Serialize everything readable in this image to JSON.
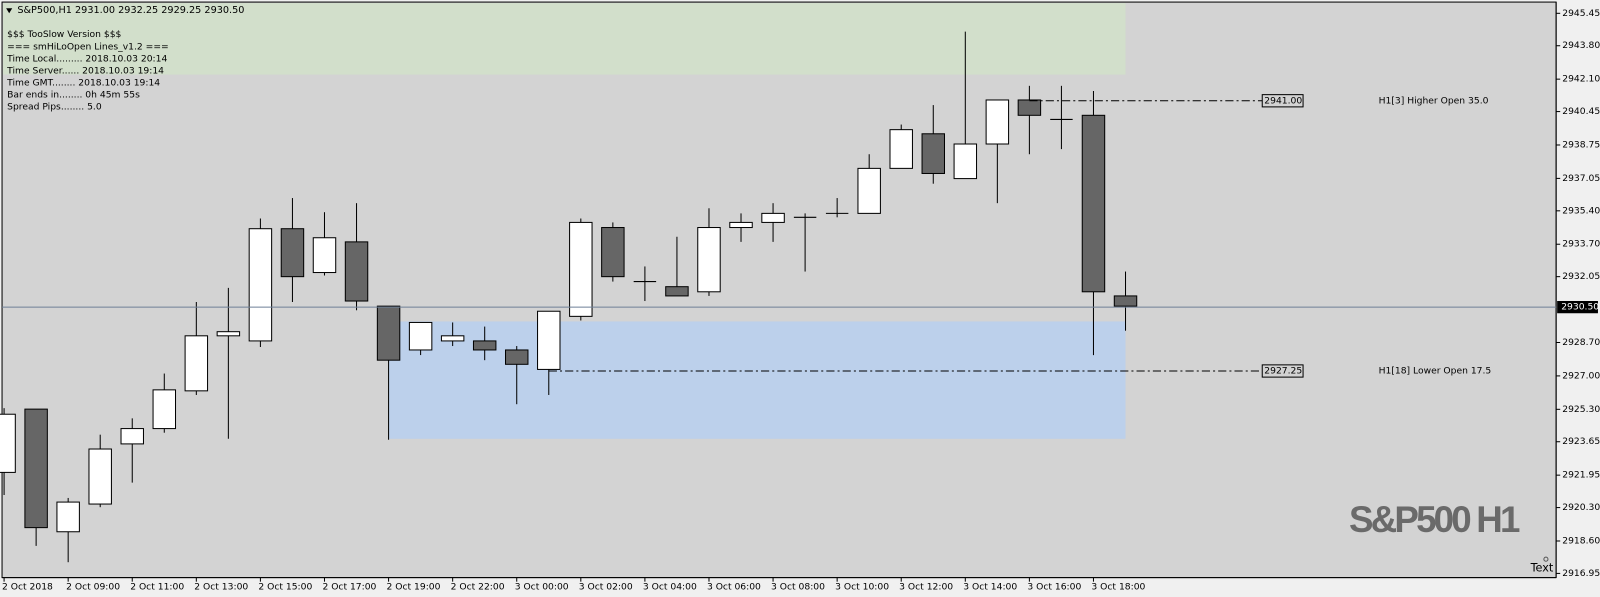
{
  "chart_data": {
    "type": "candlestick",
    "header": "S&P500,H1  2931.00 2932.25 2929.25 2930.50",
    "info_lines": [
      "$$$ TooSlow Version $$$",
      "=== smHiLoOpen Lines_v1.2 ===",
      "Time Local......... 2018.10.03 20:14",
      "Time Server...... 2018.10.03 19:14",
      "Time GMT........ 2018.10.03 19:14",
      "Bar ends in........ 0h 45m 55s",
      "Spread Pips........ 5.0"
    ],
    "watermark": "S&P500 H1",
    "text_object": "Text",
    "categories": [
      "2 Oct 2018",
      null,
      "2 Oct 09:00",
      null,
      "2 Oct 11:00",
      null,
      "2 Oct 13:00",
      null,
      "2 Oct 15:00",
      null,
      "2 Oct 17:00",
      null,
      "2 Oct 19:00",
      null,
      "2 Oct 22:00",
      null,
      "3 Oct 00:00",
      null,
      "3 Oct 02:00",
      null,
      "3 Oct 04:00",
      null,
      "3 Oct 06:00",
      null,
      "3 Oct 08:00",
      null,
      "3 Oct 10:00",
      null,
      "3 Oct 12:00",
      null,
      "3 Oct 14:00",
      null,
      "3 Oct 16:00",
      null,
      "3 Oct 18:00",
      null
    ],
    "open": [
      2922.09,
      2925.31,
      2919.07,
      2920.48,
      2923.54,
      2924.32,
      2926.24,
      2929.04,
      2928.78,
      2934.49,
      2932.26,
      2933.82,
      2930.55,
      2928.32,
      2928.78,
      2928.78,
      2928.32,
      2927.33,
      2930.03,
      2934.55,
      2931.8,
      2931.54,
      2931.28,
      2934.55,
      2934.81,
      2935.07,
      2935.27,
      2935.27,
      2937.56,
      2939.32,
      2937.04,
      2938.8,
      2941.04,
      2940.05,
      2940.26,
      2931.07
    ],
    "high": [
      2925.36,
      2925.31,
      2920.79,
      2924.01,
      2924.84,
      2927.12,
      2930.76,
      2931.48,
      2935.01,
      2936.05,
      2935.33,
      2935.79,
      2930.55,
      2929.72,
      2929.72,
      2929.51,
      2928.52,
      2930.29,
      2935.01,
      2934.81,
      2932.57,
      2934.08,
      2935.53,
      2935.27,
      2935.79,
      2935.27,
      2936.05,
      2938.28,
      2939.79,
      2940.78,
      2944.52,
      2941.04,
      2941.76,
      2941.76,
      2941.5,
      2932.31
    ],
    "low": [
      2920.94,
      2918.35,
      2917.52,
      2920.32,
      2921.57,
      2924.11,
      2926.03,
      2923.8,
      2928.47,
      2930.76,
      2932.11,
      2930.34,
      2923.75,
      2928.06,
      2928.52,
      2927.8,
      2925.56,
      2926.03,
      2929.82,
      2931.8,
      2930.81,
      2931.07,
      2931.07,
      2933.82,
      2933.82,
      2932.31,
      2935.07,
      2935.27,
      2937.56,
      2936.78,
      2937.04,
      2935.79,
      2938.28,
      2938.54,
      2928.06,
      2929.3
    ],
    "close": [
      2925.05,
      2919.28,
      2920.58,
      2923.28,
      2924.32,
      2926.29,
      2929.04,
      2929.25,
      2934.49,
      2932.05,
      2934.03,
      2930.81,
      2927.8,
      2929.72,
      2929.04,
      2928.32,
      2927.59,
      2930.29,
      2934.81,
      2932.05,
      2931.8,
      2931.07,
      2934.55,
      2934.81,
      2935.27,
      2935.07,
      2935.27,
      2937.56,
      2939.53,
      2937.3,
      2938.8,
      2941.04,
      2940.26,
      2940.05,
      2931.28,
      2930.55
    ],
    "up_color": "#ffffff",
    "down_color": "#666666",
    "ylim": [
      2916.79,
      2945.97
    ],
    "yticks": [
      2945.45,
      {
        "value": 2943.8,
        "label": "2943.80"
      },
      {
        "value": 2942.1,
        "label": "2942.10"
      },
      2940.45,
      2938.75,
      2937.05,
      {
        "value": 2935.4,
        "label": "2935.40"
      },
      {
        "value": 2933.7,
        "label": "2933.70"
      },
      2932.05,
      {
        "value": 2928.7,
        "label": "2928.70"
      },
      {
        "value": 2927.0,
        "label": "2927.00"
      },
      {
        "value": 2925.3,
        "label": "2925.30"
      },
      2923.65,
      2921.95,
      {
        "value": 2920.3,
        "label": "2920.30"
      },
      {
        "value": 2918.6,
        "label": "2918.60"
      },
      2916.95
    ],
    "current_price": {
      "value": 2930.5,
      "label": "2930.50"
    },
    "zones": [
      {
        "color": "#d2dfcb",
        "start": 0,
        "end": 35,
        "ylim": [
          2942.33,
          2945.97
        ]
      },
      {
        "color": "#bcd0eb",
        "start": 12,
        "end": 35,
        "ylim": [
          2923.8,
          2929.77
        ]
      }
    ],
    "levels": [
      {
        "value": 2941.0,
        "label": "2941.00",
        "text": "H1[3] Higher Open 35.0",
        "start": 32
      },
      {
        "value": 2927.25,
        "label": "2927.25",
        "text": "H1[18] Lower Open 17.5",
        "start": 17
      }
    ]
  }
}
